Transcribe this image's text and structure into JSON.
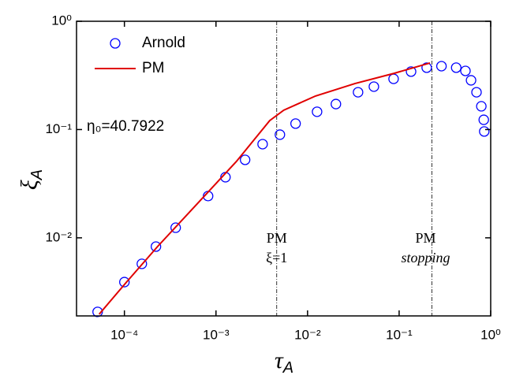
{
  "chart_data": {
    "type": "scatter",
    "xlabel": {
      "symbol": "τ",
      "sub": "A"
    },
    "ylabel": {
      "symbol": "ξ",
      "sub": "A"
    },
    "log_x": true,
    "log_y": true,
    "xlim": [
      3e-05,
      1
    ],
    "ylim": [
      0.0019,
      1
    ],
    "xticks": [
      {
        "value": 0.0001,
        "label": "10⁻⁴"
      },
      {
        "value": 0.001,
        "label": "10⁻³"
      },
      {
        "value": 0.01,
        "label": "10⁻²"
      },
      {
        "value": 0.1,
        "label": "10⁻¹"
      },
      {
        "value": 1,
        "label": "10⁰"
      }
    ],
    "yticks": [
      {
        "value": 0.01,
        "label": "10⁻²"
      },
      {
        "value": 0.1,
        "label": "10⁻¹"
      },
      {
        "value": 1,
        "label": "10⁰"
      }
    ],
    "legend": "upper left",
    "series": [
      {
        "name": "Arnold",
        "kind": "markers",
        "color": "#0000ff",
        "x": [
          5.1e-05,
          0.0001,
          0.000155,
          0.000221,
          0.000363,
          0.00082,
          0.00127,
          0.00208,
          0.00323,
          0.00499,
          0.0074,
          0.0127,
          0.0204,
          0.0356,
          0.053,
          0.087,
          0.135,
          0.2,
          0.29,
          0.42,
          0.53,
          0.61,
          0.7,
          0.79,
          0.84,
          0.85
        ],
        "values": [
          0.00207,
          0.0039,
          0.00575,
          0.0083,
          0.0124,
          0.0243,
          0.0363,
          0.0525,
          0.0733,
          0.0897,
          0.1135,
          0.146,
          0.172,
          0.221,
          0.249,
          0.294,
          0.343,
          0.373,
          0.385,
          0.373,
          0.348,
          0.285,
          0.221,
          0.164,
          0.123,
          0.096
        ]
      },
      {
        "name": "PM",
        "kind": "line",
        "color": "#e00000",
        "x": [
          5.3e-05,
          0.000104,
          0.00023,
          0.00076,
          0.00167,
          0.00386,
          0.0055,
          0.0122,
          0.0329,
          0.0887,
          0.217
        ],
        "values": [
          0.00197,
          0.00385,
          0.0083,
          0.0247,
          0.0507,
          0.121,
          0.151,
          0.204,
          0.266,
          0.331,
          0.412
        ]
      }
    ],
    "vlines": [
      {
        "x": 0.0046,
        "label": [
          "PM",
          "ξ=1"
        ]
      },
      {
        "x": 0.228,
        "label": [
          "PM",
          "stopping"
        ]
      }
    ],
    "annotation": "η₀=40.7922"
  }
}
